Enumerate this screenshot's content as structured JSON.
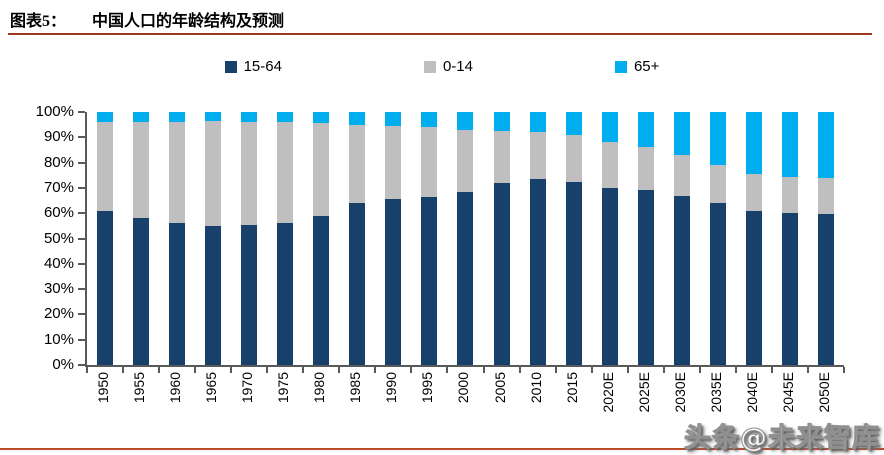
{
  "header": {
    "figure_label": "图表5：",
    "title": "中国人口的年龄结构及预测"
  },
  "legend": {
    "items": [
      {
        "label": "15-64",
        "color": "#17406B"
      },
      {
        "label": "0-14",
        "color": "#BFBFBF"
      },
      {
        "label": "65+",
        "color": "#00AEEF"
      }
    ]
  },
  "chart_data": {
    "type": "bar",
    "stacked": true,
    "title": "中国人口的年龄结构及预测",
    "xlabel": "",
    "ylabel": "",
    "ylim": [
      0,
      100
    ],
    "grid": false,
    "legend_position": "top",
    "unit": "%",
    "categories": [
      "1950",
      "1955",
      "1960",
      "1965",
      "1970",
      "1975",
      "1980",
      "1985",
      "1990",
      "1995",
      "2000",
      "2005",
      "2010",
      "2015",
      "2020E",
      "2025E",
      "2030E",
      "2035E",
      "2040E",
      "2045E",
      "2050E"
    ],
    "y_ticks": [
      "0%",
      "10%",
      "20%",
      "30%",
      "40%",
      "50%",
      "60%",
      "70%",
      "80%",
      "90%",
      "100%"
    ],
    "series": [
      {
        "name": "15-64",
        "color": "#17406B",
        "values": [
          61,
          58,
          56,
          55,
          55.5,
          56,
          59,
          64,
          65.5,
          66.5,
          68.5,
          72,
          73.5,
          72.5,
          70,
          69,
          67,
          64,
          61,
          60,
          59.5
        ]
      },
      {
        "name": "0-14",
        "color": "#BFBFBF",
        "values": [
          35,
          38,
          40,
          41.5,
          40.5,
          40,
          36.5,
          31,
          29,
          27.5,
          24.5,
          20.5,
          18.5,
          18.5,
          18,
          17,
          16,
          15,
          14.5,
          14.5,
          14.5
        ]
      },
      {
        "name": "65+",
        "color": "#00AEEF",
        "values": [
          4,
          4,
          4,
          3.5,
          4,
          4,
          4.5,
          5,
          5.5,
          6,
          7,
          7.5,
          8,
          9,
          12,
          14,
          17,
          21,
          24.5,
          25.5,
          26
        ]
      }
    ]
  },
  "watermark": {
    "text": "头条@未来智库"
  },
  "colors": {
    "title_rule": "#9c3a1e",
    "bottom_rule": "#bc4a2b",
    "axis": "#595959",
    "background": "#ffffff"
  }
}
